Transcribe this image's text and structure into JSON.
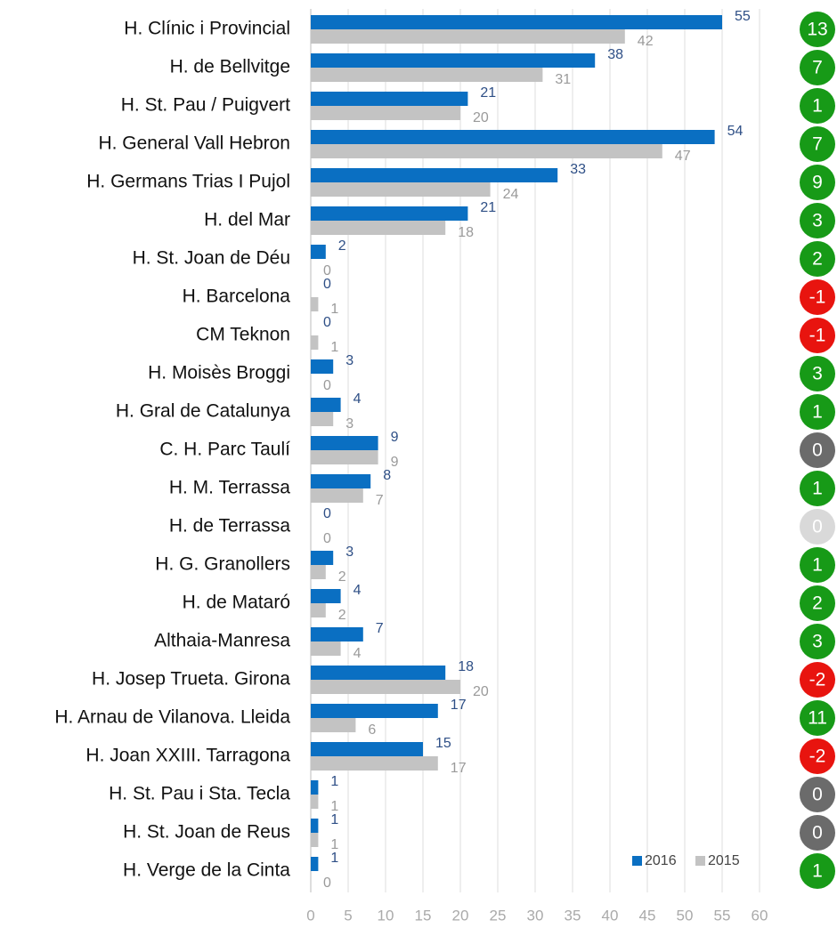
{
  "chart_data": {
    "type": "bar",
    "orientation": "horizontal",
    "categories": [
      "H. Clínic i Provincial",
      "H. de Bellvitge",
      "H.  St. Pau / Puigvert",
      "H. General Vall Hebron",
      "H. Germans Trias I Pujol",
      "H. del Mar",
      "H. St. Joan de Déu",
      "H. Barcelona",
      "CM Teknon",
      "H. Moisès Broggi",
      "H. Gral de Catalunya",
      "C. H. Parc Taulí",
      "H. M. Terrassa",
      "H. de Terrassa",
      "H. G. Granollers",
      "H. de Mataró",
      "Althaia-Manresa",
      "H. Josep Trueta. Girona",
      "H. Arnau de Vilanova. Lleida",
      "H. Joan XXIII. Tarragona",
      "H. St. Pau i Sta. Tecla",
      "H. St. Joan de Reus",
      "H. Verge de la Cinta"
    ],
    "series": [
      {
        "name": "2016",
        "color": "#0a6fc2",
        "label_color": "#2e4f86",
        "values": [
          55,
          38,
          21,
          54,
          33,
          21,
          2,
          0,
          0,
          3,
          4,
          9,
          8,
          0,
          3,
          4,
          7,
          18,
          17,
          15,
          1,
          1,
          1
        ]
      },
      {
        "name": "2015",
        "color": "#c3c3c3",
        "label_color": "#9a9a9a",
        "values": [
          42,
          31,
          20,
          47,
          24,
          18,
          0,
          1,
          1,
          0,
          3,
          9,
          7,
          0,
          2,
          2,
          4,
          20,
          6,
          17,
          1,
          1,
          0
        ]
      }
    ],
    "changes": [
      13,
      7,
      1,
      7,
      9,
      3,
      2,
      -1,
      -1,
      3,
      1,
      0,
      1,
      0,
      1,
      2,
      3,
      -2,
      11,
      -2,
      0,
      0,
      1
    ],
    "change_colors": [
      "#179a17",
      "#179a17",
      "#179a17",
      "#179a17",
      "#179a17",
      "#179a17",
      "#179a17",
      "#e8140f",
      "#e8140f",
      "#179a17",
      "#179a17",
      "#6b6b6b",
      "#179a17",
      "#d9d9d9",
      "#179a17",
      "#179a17",
      "#179a17",
      "#e8140f",
      "#179a17",
      "#e8140f",
      "#6b6b6b",
      "#6b6b6b",
      "#179a17"
    ],
    "xlim": [
      0,
      60
    ],
    "xticks": [
      0,
      5,
      10,
      15,
      20,
      25,
      30,
      35,
      40,
      45,
      50,
      55,
      60
    ],
    "grid": true,
    "legend": "bottom-right"
  }
}
